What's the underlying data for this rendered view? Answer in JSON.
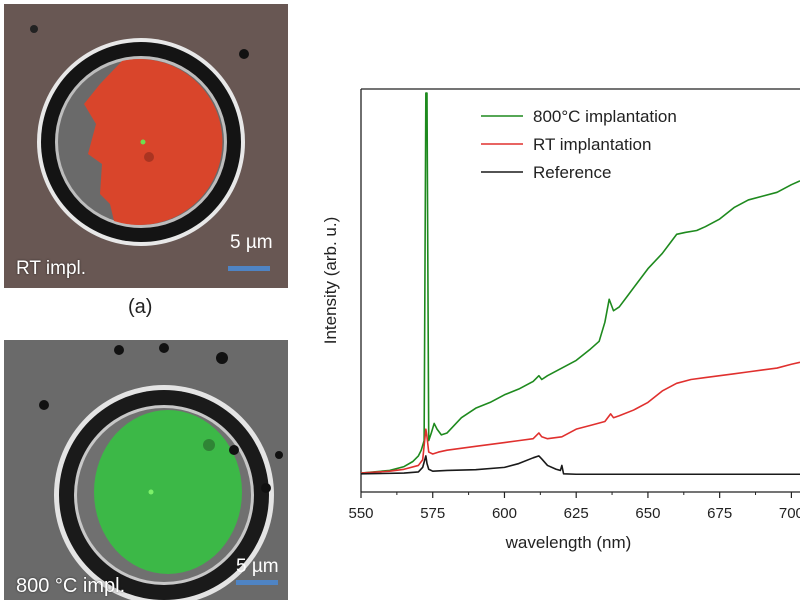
{
  "left_panels": {
    "top": {
      "caption": "RT impl.",
      "scale": "5 µm",
      "fill_color": "#d9452b"
    },
    "bottom": {
      "caption": "800 °C impl.",
      "scale": "5 µm",
      "fill_color": "#3cb847"
    },
    "sublabel": "(a)"
  },
  "chart_data": {
    "type": "line",
    "xlabel": "wavelength (nm)",
    "ylabel": "Intensity (arb. u.)",
    "xlim": [
      550,
      703
    ],
    "ylim": [
      0,
      1
    ],
    "xticks": [
      550,
      575,
      600,
      625,
      650,
      675,
      700
    ],
    "tick_labels": [
      "550",
      "575",
      "600",
      "625",
      "650",
      "675",
      "700"
    ],
    "legend_position": "top-center",
    "series": [
      {
        "name": "800°C implantation",
        "color": "#1e8a1e",
        "x": [
          550,
          560,
          565,
          568,
          570,
          571,
          572,
          572.6,
          573,
          573.6,
          574.5,
          575.5,
          576.5,
          578,
          580,
          585,
          590,
          595,
          600,
          605,
          610,
          612,
          613,
          615,
          620,
          625,
          630,
          633,
          635,
          636.5,
          638,
          640,
          643,
          646,
          650,
          655,
          658,
          660,
          663,
          667,
          670,
          675,
          680,
          685,
          690,
          695,
          700,
          703
        ],
        "y": [
          0.005,
          0.012,
          0.022,
          0.035,
          0.05,
          0.065,
          0.09,
          1.0,
          1.0,
          0.09,
          0.11,
          0.135,
          0.12,
          0.105,
          0.11,
          0.15,
          0.175,
          0.19,
          0.21,
          0.225,
          0.245,
          0.26,
          0.25,
          0.26,
          0.28,
          0.3,
          0.33,
          0.35,
          0.4,
          0.46,
          0.43,
          0.44,
          0.47,
          0.5,
          0.54,
          0.58,
          0.61,
          0.63,
          0.635,
          0.64,
          0.65,
          0.67,
          0.7,
          0.72,
          0.73,
          0.74,
          0.76,
          0.77
        ]
      },
      {
        "name": "RT implantation",
        "color": "#e0302e",
        "x": [
          550,
          560,
          565,
          570,
          571.5,
          572.6,
          573,
          573.6,
          575,
          577,
          580,
          590,
          600,
          605,
          610,
          612,
          613,
          615,
          620,
          625,
          630,
          635,
          637,
          638,
          640,
          645,
          650,
          655,
          660,
          665,
          670,
          675,
          680,
          685,
          690,
          695,
          700,
          703
        ],
        "y": [
          0.005,
          0.01,
          0.015,
          0.025,
          0.04,
          0.12,
          0.1,
          0.06,
          0.055,
          0.06,
          0.065,
          0.075,
          0.085,
          0.09,
          0.095,
          0.11,
          0.1,
          0.095,
          0.1,
          0.12,
          0.13,
          0.14,
          0.16,
          0.15,
          0.155,
          0.17,
          0.19,
          0.22,
          0.24,
          0.25,
          0.255,
          0.26,
          0.265,
          0.27,
          0.275,
          0.28,
          0.29,
          0.295
        ]
      },
      {
        "name": "Reference",
        "color": "#1a1a1a",
        "x": [
          550,
          565,
          570,
          571.5,
          572.6,
          573,
          573.6,
          575,
          580,
          590,
          600,
          605,
          610,
          612,
          613,
          615,
          618,
          619.5,
          620,
          620.6,
          625,
          650,
          680,
          703
        ],
        "y": [
          0.003,
          0.005,
          0.008,
          0.02,
          0.05,
          0.03,
          0.015,
          0.01,
          0.012,
          0.014,
          0.02,
          0.03,
          0.045,
          0.05,
          0.042,
          0.025,
          0.015,
          0.012,
          0.025,
          0.003,
          0.002,
          0.002,
          0.002,
          0.002
        ]
      }
    ]
  }
}
